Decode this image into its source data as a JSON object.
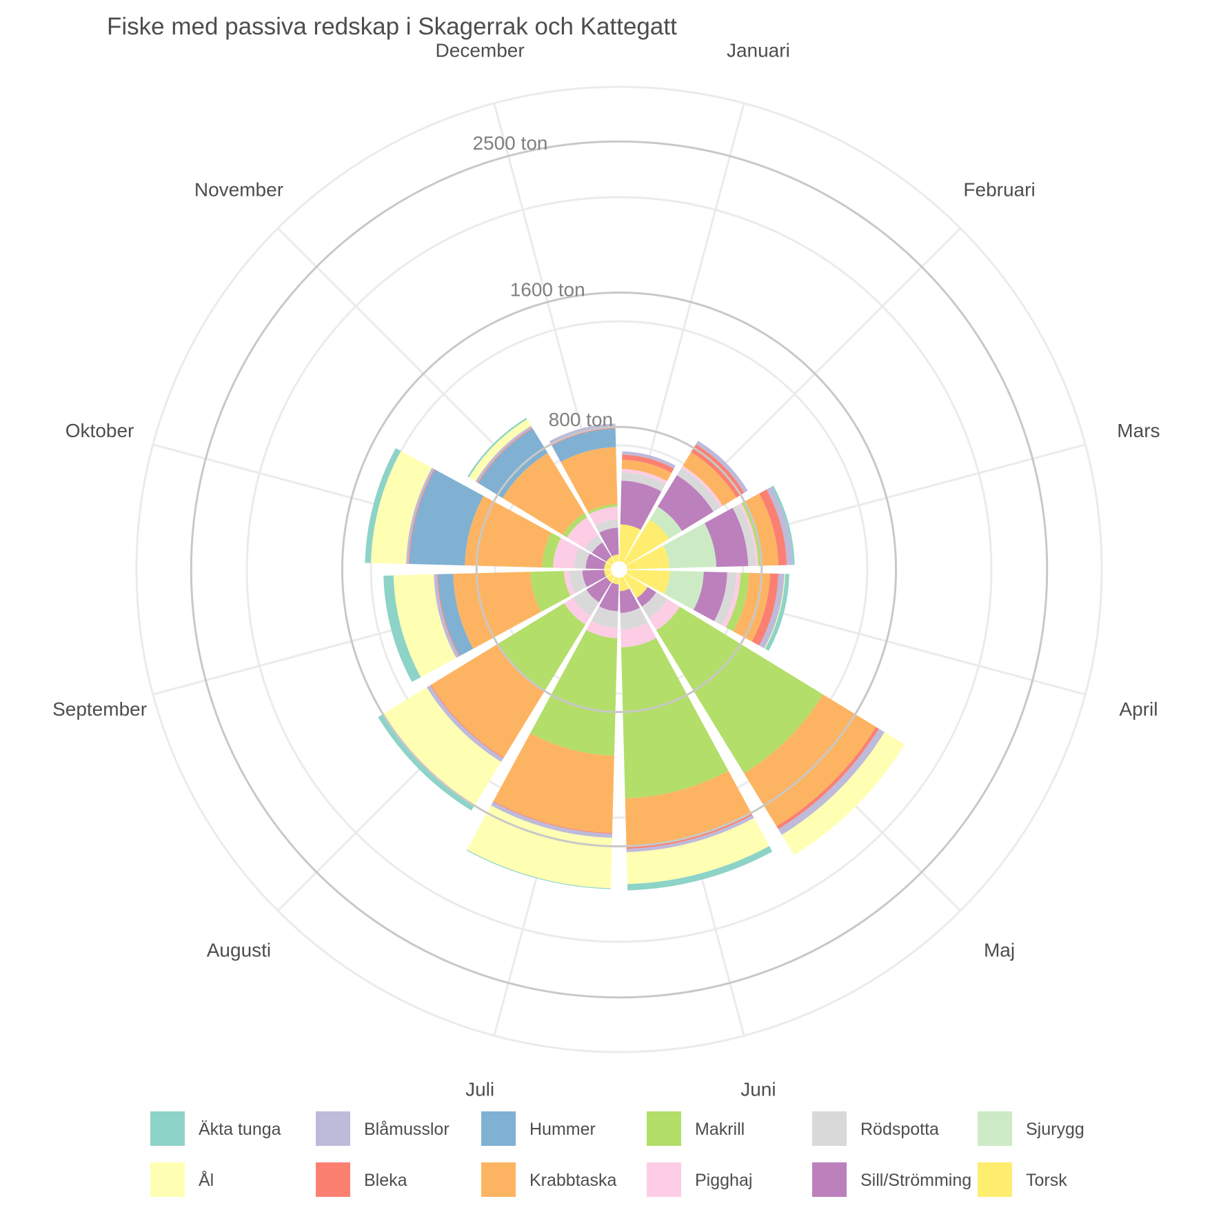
{
  "chart_data": {
    "type": "polar-stacked-bar",
    "title": "Fiske med passiva redskap i Skagerrak och Kattegatt",
    "ring_labels": [
      {
        "value": 800,
        "label": "800 ton"
      },
      {
        "value": 1600,
        "label": "1600 ton"
      },
      {
        "value": 2500,
        "label": "2500 ton"
      }
    ],
    "ring_values": [
      800,
      1600,
      2500
    ],
    "categories": [
      "Januari",
      "Februari",
      "Mars",
      "April",
      "Maj",
      "Juni",
      "Juli",
      "Augusti",
      "September",
      "Oktober",
      "November",
      "December"
    ],
    "stack_order": [
      "Torsk",
      "Sjurygg",
      "Sill/Strömming",
      "Rödspotta",
      "Pigghaj",
      "Makrill",
      "Krabbtaska",
      "Hummer",
      "Bleka",
      "Blåmusslor",
      "Ål",
      "Äkta tunga"
    ],
    "series": [
      {
        "name": "Äkta tunga",
        "color": "#8DD3C7",
        "values": [
          0,
          0,
          12,
          25,
          0,
          38,
          5,
          30,
          60,
          35,
          10,
          0
        ]
      },
      {
        "name": "Ål",
        "color": "#FFFFB3",
        "values": [
          0,
          0,
          0,
          5,
          140,
          190,
          300,
          310,
          240,
          210,
          45,
          0
        ]
      },
      {
        "name": "Blåmusslor",
        "color": "#BEBADA",
        "values": [
          20,
          25,
          35,
          35,
          40,
          20,
          25,
          25,
          20,
          15,
          15,
          25
        ]
      },
      {
        "name": "Bleka",
        "color": "#FB8072",
        "values": [
          30,
          55,
          50,
          50,
          20,
          10,
          5,
          5,
          5,
          5,
          5,
          5
        ]
      },
      {
        "name": "Krabbtaska",
        "color": "#FDB462",
        "values": [
          55,
          95,
          95,
          125,
          370,
          290,
          460,
          460,
          460,
          460,
          420,
          340
        ]
      },
      {
        "name": "Hummer",
        "color": "#80B1D3",
        "values": [
          0,
          0,
          0,
          0,
          0,
          0,
          0,
          0,
          90,
          330,
          170,
          110
        ]
      },
      {
        "name": "Makrill",
        "color": "#B3DE69",
        "values": [
          0,
          0,
          25,
          50,
          1000,
          900,
          700,
          470,
          200,
          65,
          30,
          15
        ]
      },
      {
        "name": "Pigghaj",
        "color": "#FCCDE5",
        "values": [
          20,
          15,
          15,
          25,
          85,
          105,
          60,
          60,
          30,
          125,
          125,
          75
        ]
      },
      {
        "name": "Rödspotta",
        "color": "#D9D9D9",
        "values": [
          50,
          50,
          45,
          55,
          80,
          100,
          100,
          95,
          80,
          70,
          50,
          50
        ]
      },
      {
        "name": "Sill/Strömming",
        "color": "#BC80BD",
        "values": [
          260,
          220,
          190,
          140,
          60,
          130,
          160,
          140,
          130,
          110,
          100,
          160
        ]
      },
      {
        "name": "Sjurygg",
        "color": "#CCEBC5",
        "values": [
          0,
          90,
          280,
          200,
          0,
          0,
          0,
          0,
          0,
          0,
          0,
          0
        ]
      },
      {
        "name": "Torsk",
        "color": "#FFED6F",
        "values": [
          220,
          300,
          250,
          255,
          150,
          80,
          40,
          40,
          40,
          40,
          40,
          40
        ]
      }
    ],
    "legend": {
      "position": "bottom",
      "order": [
        "Äkta tunga",
        "Ål",
        "Blåmusslor",
        "Bleka",
        "Hummer",
        "Krabbtaska",
        "Makrill",
        "Pigghaj",
        "Rödspotta",
        "Sill/Strömming",
        "Sjurygg",
        "Torsk"
      ]
    }
  }
}
